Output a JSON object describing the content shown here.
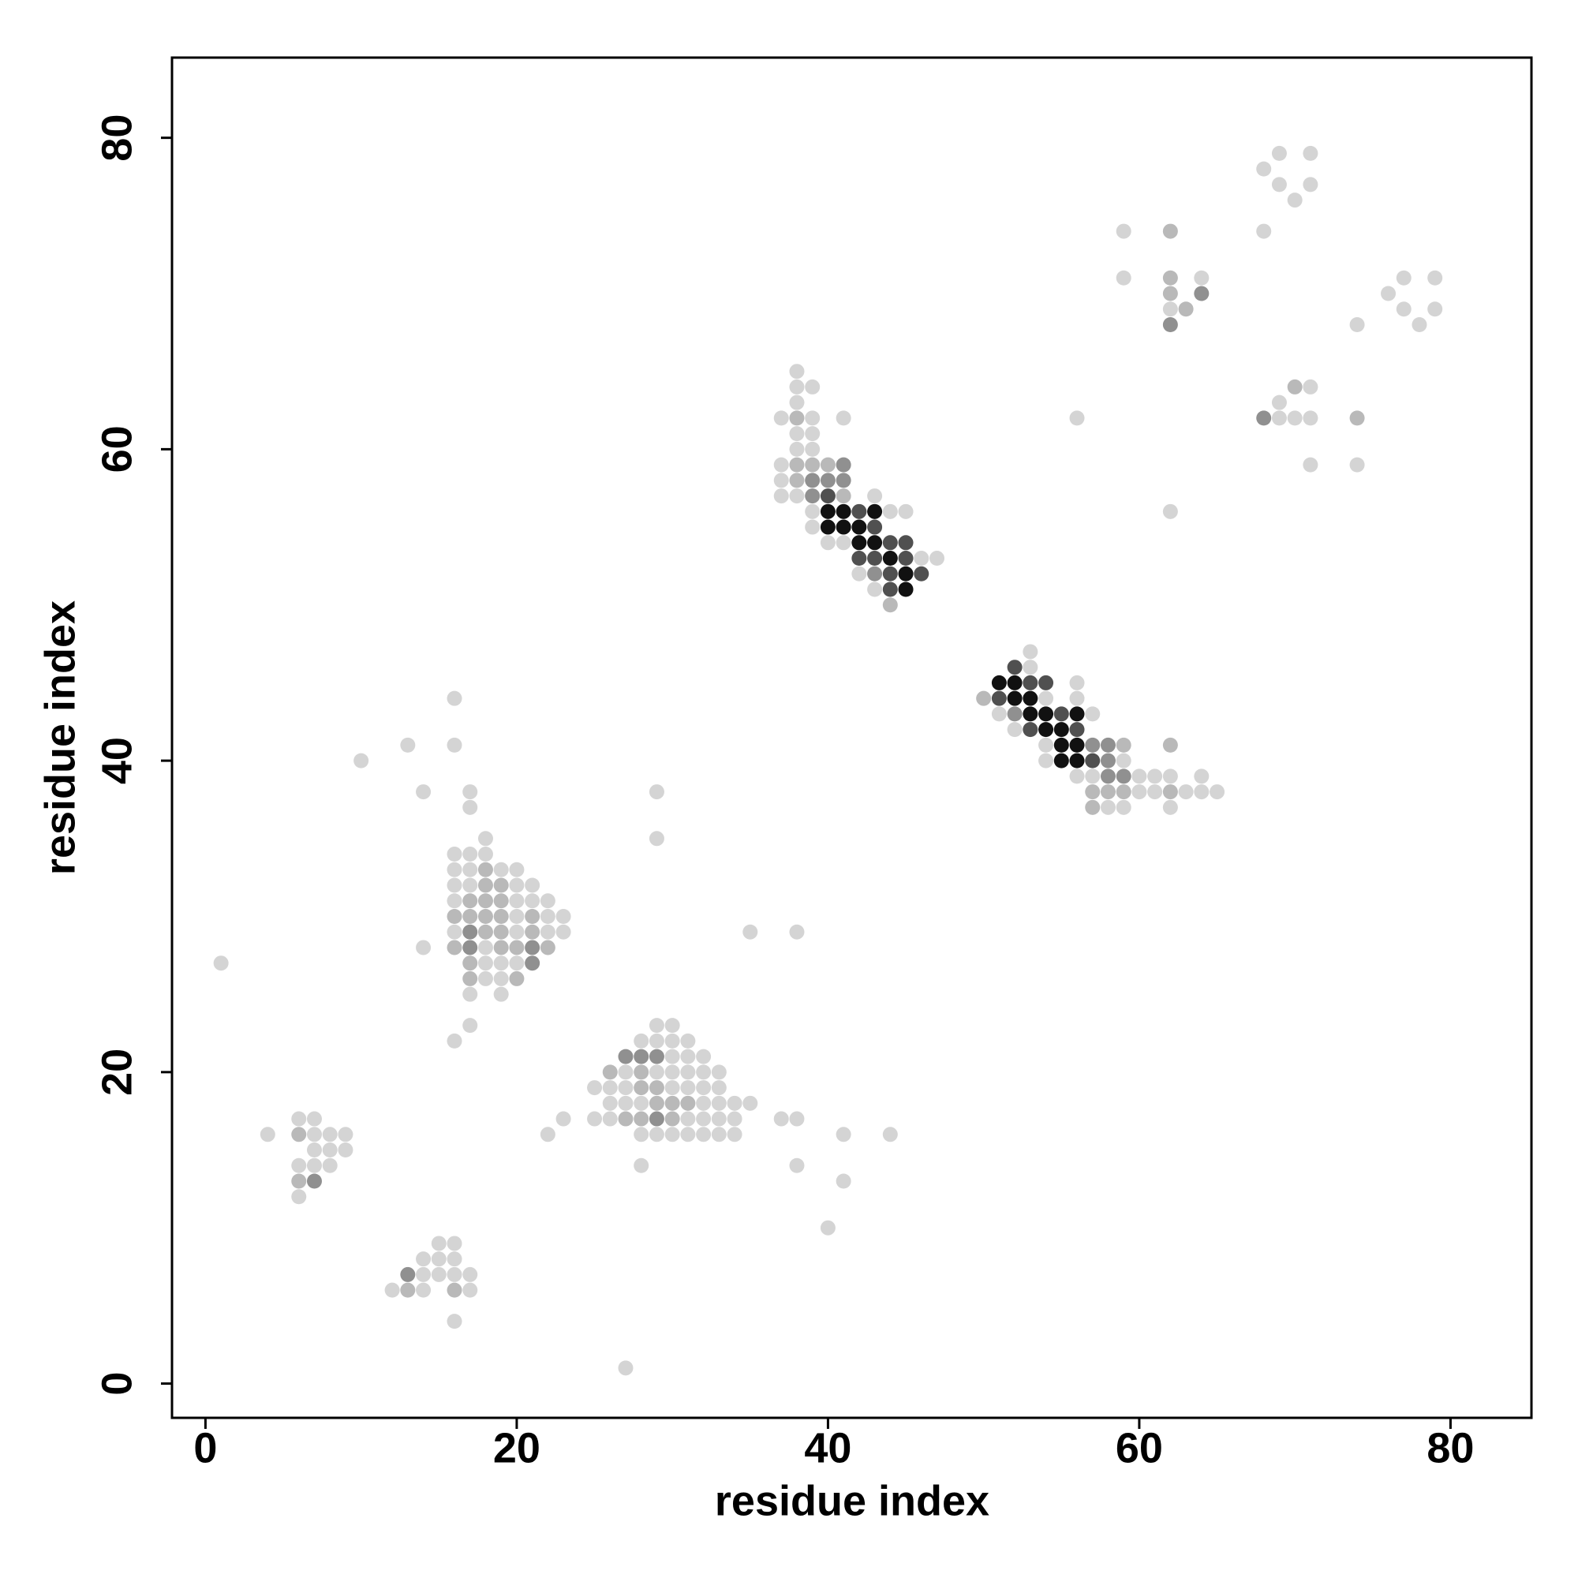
{
  "chart_data": {
    "type": "scatter",
    "xlabel": "residue index",
    "ylabel": "residue index",
    "xlim": [
      -2.15,
      85.2
    ],
    "ylim": [
      -2.2,
      85.15
    ],
    "xticks": [
      0,
      20,
      40,
      60,
      80
    ],
    "yticks": [
      0,
      20,
      40,
      60,
      80
    ],
    "series": [
      {
        "color": "#d4d4d4",
        "x": [
          1,
          4,
          6,
          7,
          7,
          8,
          9,
          7,
          8,
          9,
          6,
          7,
          8,
          6,
          10,
          13,
          14,
          16,
          16,
          17,
          17,
          14,
          15,
          16,
          14,
          15,
          16,
          14,
          15,
          16,
          17,
          12,
          14,
          17,
          16,
          18,
          16,
          17,
          18,
          16,
          17,
          19,
          20,
          16,
          17,
          20,
          21,
          16,
          20,
          21,
          22,
          20,
          22,
          23,
          16,
          20,
          22,
          23,
          18,
          18,
          19,
          20,
          18,
          19,
          17,
          19,
          17,
          16,
          29,
          29,
          35,
          38,
          29,
          30,
          28,
          29,
          30,
          31,
          30,
          31,
          32,
          27,
          29,
          30,
          31,
          32,
          33,
          25,
          26,
          27,
          30,
          31,
          32,
          33,
          26,
          27,
          28,
          32,
          33,
          34,
          35,
          25,
          26,
          31,
          32,
          33,
          34,
          28,
          29,
          30,
          31,
          32,
          33,
          34,
          23,
          22,
          28,
          27,
          37,
          38,
          38,
          41,
          41,
          40,
          44,
          38,
          38,
          39,
          38,
          37,
          39,
          41,
          38,
          39,
          38,
          39,
          37,
          37,
          37,
          38,
          43,
          39,
          44,
          45,
          39,
          40,
          41,
          46,
          47,
          42,
          43,
          56,
          62,
          53,
          53,
          56,
          54,
          56,
          51,
          57,
          52,
          54,
          54,
          59,
          56,
          57,
          60,
          61,
          62,
          64,
          60,
          61,
          63,
          64,
          65,
          58,
          59,
          62,
          59,
          59,
          64,
          62,
          68,
          69,
          71,
          69,
          71,
          70,
          68,
          77,
          79,
          76,
          77,
          79,
          74,
          78,
          71,
          69,
          69,
          70,
          71,
          71,
          74
        ],
        "y": [
          27,
          16,
          17,
          17,
          16,
          16,
          16,
          15,
          15,
          15,
          14,
          14,
          14,
          12,
          40,
          41,
          38,
          44,
          41,
          38,
          37,
          28,
          9,
          9,
          8,
          8,
          8,
          7,
          7,
          7,
          7,
          6,
          6,
          6,
          4,
          35,
          34,
          34,
          34,
          33,
          33,
          33,
          33,
          32,
          32,
          32,
          32,
          31,
          31,
          31,
          31,
          30,
          30,
          30,
          29,
          29,
          29,
          29,
          28,
          27,
          27,
          27,
          26,
          26,
          25,
          25,
          23,
          22,
          38,
          35,
          29,
          29,
          23,
          23,
          22,
          22,
          22,
          22,
          21,
          21,
          21,
          20,
          20,
          20,
          20,
          20,
          20,
          19,
          19,
          19,
          19,
          19,
          19,
          19,
          18,
          18,
          18,
          18,
          18,
          18,
          18,
          17,
          17,
          17,
          17,
          17,
          17,
          16,
          16,
          16,
          16,
          16,
          16,
          16,
          17,
          16,
          14,
          1,
          17,
          17,
          14,
          16,
          13,
          10,
          16,
          65,
          64,
          64,
          63,
          62,
          62,
          62,
          61,
          61,
          60,
          60,
          59,
          58,
          57,
          57,
          57,
          56,
          56,
          56,
          55,
          54,
          54,
          53,
          53,
          52,
          51,
          62,
          56,
          47,
          46,
          45,
          44,
          44,
          43,
          43,
          42,
          41,
          40,
          40,
          39,
          39,
          39,
          39,
          39,
          39,
          38,
          38,
          38,
          38,
          38,
          37,
          37,
          37,
          74,
          71,
          71,
          69,
          78,
          79,
          79,
          77,
          77,
          76,
          74,
          71,
          71,
          70,
          69,
          69,
          68,
          68,
          64,
          63,
          62,
          62,
          62,
          59,
          59
        ]
      },
      {
        "color": "#b9b9b9",
        "x": [
          6,
          6,
          13,
          16,
          18,
          18,
          19,
          17,
          18,
          19,
          16,
          17,
          18,
          19,
          21,
          18,
          19,
          21,
          16,
          19,
          20,
          22,
          17,
          17,
          20,
          26,
          28,
          28,
          29,
          29,
          30,
          31,
          27,
          28,
          30,
          38,
          38,
          39,
          40,
          38,
          41,
          44,
          50,
          59,
          62,
          57,
          58,
          59,
          62,
          57,
          62,
          62,
          62,
          63,
          70,
          74
        ],
        "y": [
          16,
          13,
          6,
          6,
          33,
          32,
          32,
          31,
          31,
          31,
          30,
          30,
          30,
          30,
          30,
          29,
          29,
          29,
          28,
          28,
          28,
          28,
          27,
          26,
          26,
          20,
          20,
          19,
          19,
          18,
          18,
          18,
          17,
          17,
          17,
          62,
          59,
          59,
          59,
          58,
          57,
          50,
          44,
          41,
          41,
          38,
          38,
          38,
          38,
          37,
          74,
          71,
          70,
          69,
          64,
          62
        ]
      },
      {
        "color": "#909090",
        "x": [
          7,
          13,
          17,
          17,
          21,
          21,
          27,
          28,
          29,
          29,
          41,
          39,
          40,
          41,
          39,
          43,
          52,
          57,
          58,
          58,
          58,
          59,
          64,
          62,
          68
        ],
        "y": [
          13,
          7,
          29,
          28,
          28,
          27,
          21,
          21,
          21,
          17,
          59,
          58,
          58,
          58,
          57,
          52,
          43,
          41,
          41,
          40,
          39,
          39,
          70,
          68,
          62
        ]
      },
      {
        "color": "#505050",
        "x": [
          40,
          42,
          43,
          44,
          45,
          42,
          43,
          45,
          44,
          46,
          44,
          52,
          53,
          54,
          51,
          55,
          53,
          56,
          57
        ],
        "y": [
          57,
          56,
          55,
          54,
          54,
          53,
          53,
          53,
          52,
          52,
          51,
          46,
          45,
          45,
          44,
          43,
          42,
          42,
          40
        ]
      },
      {
        "color": "#111111",
        "x": [
          40,
          41,
          43,
          40,
          41,
          42,
          42,
          43,
          44,
          45,
          45,
          51,
          52,
          52,
          53,
          53,
          54,
          56,
          54,
          55,
          55,
          56,
          55,
          56
        ],
        "y": [
          56,
          56,
          56,
          55,
          55,
          55,
          54,
          54,
          53,
          52,
          51,
          45,
          45,
          44,
          44,
          43,
          43,
          43,
          42,
          42,
          41,
          41,
          40,
          40
        ]
      }
    ]
  }
}
